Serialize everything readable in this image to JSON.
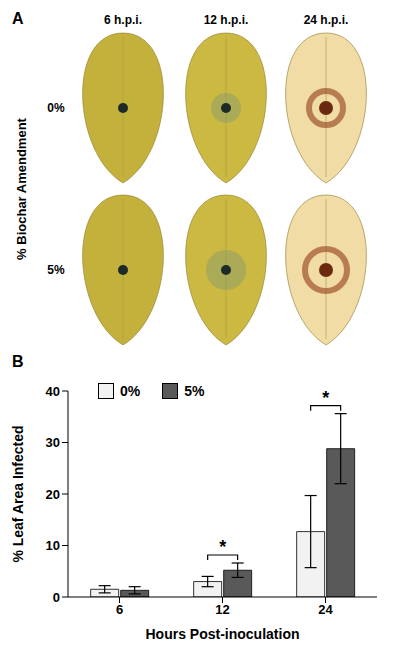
{
  "panel_labels": [
    "A",
    "B"
  ],
  "panel_a": {
    "row_title": "% Biochar Amendment",
    "columns": [
      "6 h.p.i.",
      "12 h.p.i.",
      "24 h.p.i."
    ],
    "rows": [
      "0%",
      "5%"
    ]
  },
  "chart_data": {
    "type": "bar",
    "categories": [
      "6",
      "12",
      "24"
    ],
    "x_label": "Hours Post-inoculation",
    "y_label": "% Leaf Area Infected",
    "ylim": [
      0,
      40
    ],
    "yticks": [
      0,
      10,
      20,
      30,
      40
    ],
    "legend": "upper left",
    "series": [
      {
        "name": "0%",
        "color": "#f2f2f2",
        "values": [
          1.5,
          3.0,
          12.7
        ],
        "errors": [
          0.7,
          1.0,
          7.0
        ]
      },
      {
        "name": "5%",
        "color": "#595959",
        "values": [
          1.3,
          5.2,
          28.8
        ],
        "errors": [
          0.7,
          1.4,
          6.8
        ]
      }
    ],
    "annotations": [
      {
        "text": "*",
        "category": "12"
      },
      {
        "text": "*",
        "category": "24"
      }
    ]
  }
}
